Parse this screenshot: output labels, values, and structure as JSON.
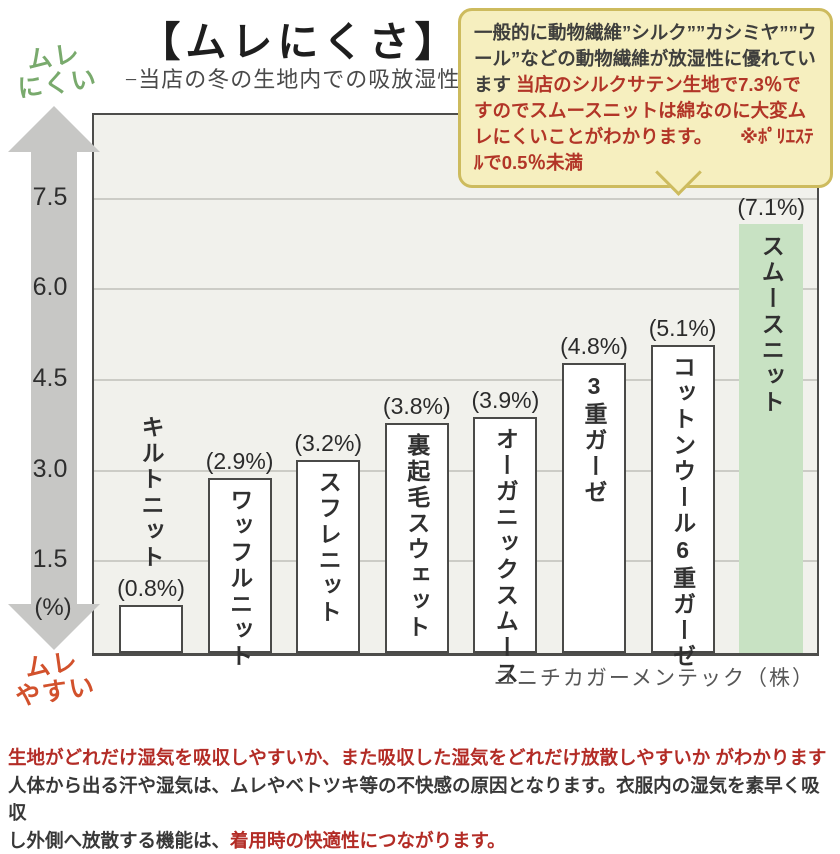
{
  "header": {
    "title": "【ムレにくさ】",
    "subtitle": "−当店の冬の生地内での吸放湿性 -"
  },
  "bubble": {
    "normal_text": "一般的に動物繊維”シルク””カシミヤ””ウール”などの動物繊維が放湿性に優れています ",
    "highlight_text": "当店のシルクサテン生地で7.3％ですのでスムースニットは綿なのに大変ムレにくいことがわかります。",
    "note_text": "　　※ﾎﾟﾘｴｽﾃﾙで0.5％未満"
  },
  "axis": {
    "top_label": "ムレ\nにくい",
    "bottom_label": "ムレ\nやすい",
    "unit": "(%)"
  },
  "chart_data": {
    "type": "bar",
    "title": "ムレにくさ",
    "subtitle": "当店の冬の生地内での吸放湿性",
    "categories": [
      "キルトニット",
      "ワッフルニット",
      "スフレニット",
      "裏起毛スウェット",
      "オーガニックスムース",
      "3重ガーゼ",
      "コットンウール6重ガーゼ",
      "スムースニット"
    ],
    "values": [
      0.8,
      2.9,
      3.2,
      3.8,
      3.9,
      4.8,
      5.1,
      7.1
    ],
    "value_labels": [
      "(0.8%)",
      "(2.9%)",
      "(3.2%)",
      "(3.8%)",
      "(3.9%)",
      "(4.8%)",
      "(5.1%)",
      "(7.1%)"
    ],
    "name_positions": [
      "above",
      "inside",
      "inside",
      "inside",
      "inside",
      "inside",
      "inside",
      "inside"
    ],
    "highlight_index": 7,
    "yticks": [
      1.5,
      3.0,
      4.5,
      6.0,
      7.5
    ],
    "ylim": [
      0,
      8.9
    ],
    "unit": "%",
    "grid": true,
    "legend": false,
    "colors": {
      "bar_fill": "#ffffff",
      "bar_border": "#4a4a48",
      "highlight_fill": "#c8e2c3",
      "plot_background": "#f1f1ec"
    },
    "source": "ユニチカガーメンテック（株）"
  },
  "footer": {
    "line1": "生地がどれだけ湿気を吸収しやすいか、また吸収した湿気をどれだけ放散しやすいか がわかります",
    "line2": "人体から出る汗や湿気は、ムレやベトツキ等の不快感の原因となります。衣服内の湿気を素早く吸収",
    "line3_dark": "し外側へ放散する機能は、",
    "line3_red": "着用時の快適性につながります。"
  }
}
